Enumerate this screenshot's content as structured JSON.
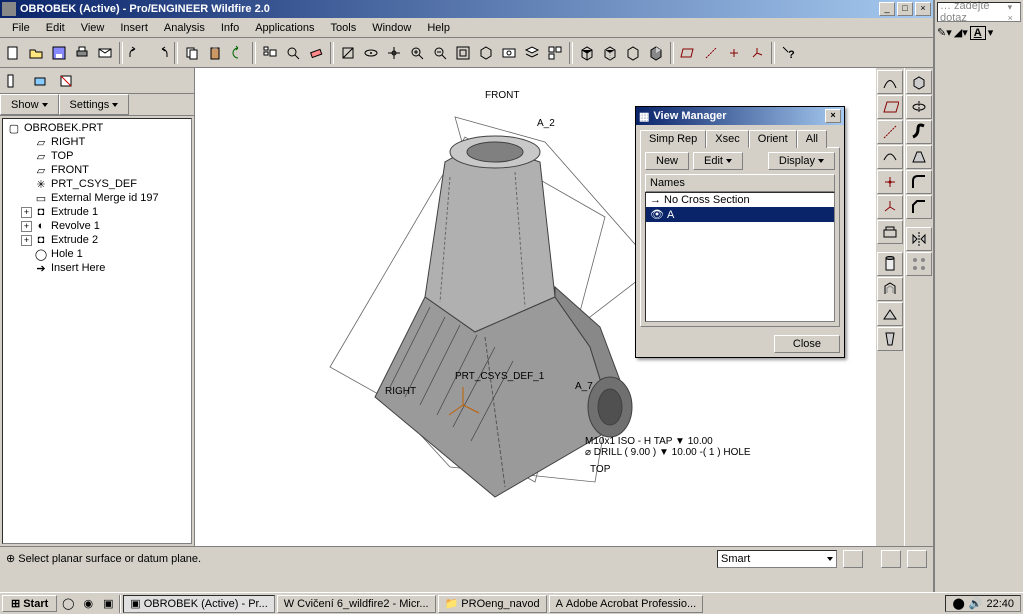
{
  "window": {
    "title": "OBROBEK (Active) - Pro/ENGINEER Wildfire 2.0",
    "status_message": "⊕ Select planar surface or datum plane."
  },
  "menu": [
    "File",
    "Edit",
    "View",
    "Insert",
    "Analysis",
    "Info",
    "Applications",
    "Tools",
    "Window",
    "Help"
  ],
  "model_tree": {
    "root": "OBROBEK.PRT",
    "items": [
      {
        "label": "RIGHT",
        "icon": "plane",
        "indent": 1
      },
      {
        "label": "TOP",
        "icon": "plane",
        "indent": 1
      },
      {
        "label": "FRONT",
        "icon": "plane",
        "indent": 1
      },
      {
        "label": "PRT_CSYS_DEF",
        "icon": "csys",
        "indent": 1
      },
      {
        "label": "External Merge id 197",
        "icon": "merge",
        "indent": 1
      },
      {
        "label": "Extrude 1",
        "icon": "extrude",
        "indent": 1,
        "expand": "+"
      },
      {
        "label": "Revolve 1",
        "icon": "revolve",
        "indent": 1,
        "expand": "+"
      },
      {
        "label": "Extrude 2",
        "icon": "extrude",
        "indent": 1,
        "expand": "+"
      },
      {
        "label": "Hole 1",
        "icon": "hole",
        "indent": 1
      },
      {
        "label": "Insert Here",
        "icon": "arrow",
        "indent": 1
      }
    ]
  },
  "left_buttons": {
    "show": "Show",
    "settings": "Settings"
  },
  "canvas_labels": {
    "front": "FRONT",
    "a2": "A_2",
    "csys": "PRT_CSYS_DEF_1",
    "right": "RIGHT",
    "a7": "A_7",
    "top": "TOP",
    "hole_note1": "M10x1 ISO - H TAP ▼ 10.00",
    "hole_note2": "⌀ DRILL ( 9.00 ) ▼ 10.00  -( 1 ) HOLE"
  },
  "view_manager": {
    "title": "View Manager",
    "tabs": [
      "Simp Rep",
      "Xsec",
      "Orient",
      "All"
    ],
    "active_tab": 1,
    "new_btn": "New",
    "edit_btn": "Edit",
    "display_btn": "Display",
    "list_header": "Names",
    "items": [
      {
        "label": "No Cross Section",
        "selected": false,
        "icon": "→"
      },
      {
        "label": "A",
        "selected": true,
        "icon": "👁"
      }
    ],
    "close_btn": "Close"
  },
  "status_combo": "Smart",
  "question_box": {
    "placeholder": "… zadejte dotaz"
  },
  "taskbar": {
    "start": "Start",
    "tasks": [
      {
        "label": "OBROBEK (Active) - Pr...",
        "active": true
      },
      {
        "label": "Cvičení 6_wildfire2 - Micr...",
        "active": false
      },
      {
        "label": "PROeng_navod",
        "active": false
      },
      {
        "label": "Adobe Acrobat Professio...",
        "active": false
      }
    ],
    "clock": "22:40"
  },
  "colors": {
    "titlebar_start": "#0a246a",
    "titlebar_end": "#a6caf0",
    "ui_bg": "#d4d0c8",
    "canvas_bg": "#ffffff",
    "part_fill": "#9a9a9a",
    "part_fill_light": "#c8c8c8",
    "part_edge": "#404040",
    "datum": "#666666"
  }
}
